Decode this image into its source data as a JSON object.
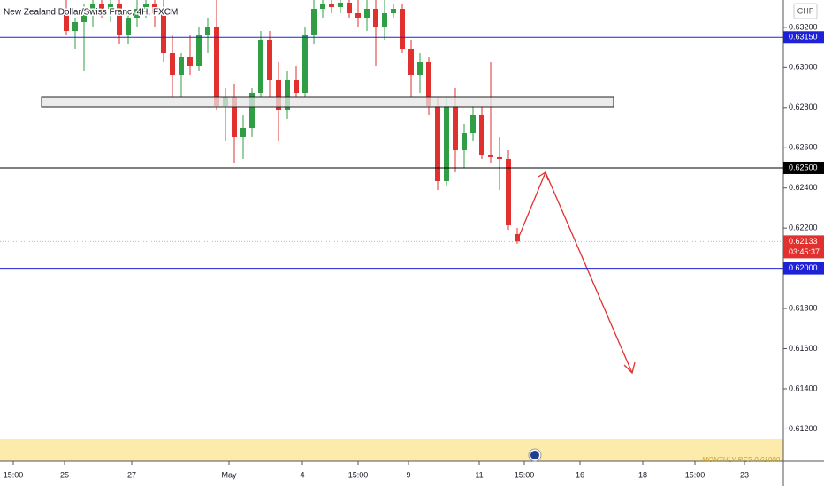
{
  "chart_data": {
    "type": "candlestick",
    "title": "New Zealand Dollar/Swiss Franc, 4H, FXCM",
    "currency": "CHF",
    "up_color": "#2f9e44",
    "down_color": "#e0312f",
    "open": [
      0.63292,
      0.63182,
      0.63226,
      0.6327,
      0.63314,
      0.63292,
      0.63314,
      0.6316,
      0.63248,
      0.63292,
      0.63314,
      0.6327,
      0.63072,
      0.62962,
      0.6305,
      0.63006,
      0.6316,
      0.63204,
      0.62808,
      0.62852,
      0.62654,
      0.62698,
      0.62874,
      0.63138,
      0.6294,
      0.62786,
      0.6294,
      0.62874,
      0.6316,
      0.63292,
      0.63314,
      0.63301,
      0.63323,
      0.6327,
      0.63248,
      0.63292,
      0.63204,
      0.6327,
      0.63292,
      0.63094,
      0.62962,
      0.63028,
      0.62808,
      0.62434,
      0.62808,
      0.62588,
      0.62676,
      0.62764,
      0.62566,
      0.62553,
      0.62544,
      0.6217
    ],
    "high": [
      0.63336,
      0.63248,
      0.63314,
      0.63336,
      0.63336,
      0.63336,
      0.63336,
      0.6327,
      0.63336,
      0.63336,
      0.63336,
      0.63336,
      0.6316,
      0.63072,
      0.6316,
      0.63204,
      0.63248,
      0.63336,
      0.62896,
      0.62918,
      0.62764,
      0.62896,
      0.63182,
      0.63182,
      0.63028,
      0.62984,
      0.63006,
      0.63204,
      0.63336,
      0.63336,
      0.63336,
      0.63336,
      0.63336,
      0.63336,
      0.63336,
      0.63336,
      0.63336,
      0.63314,
      0.63314,
      0.63138,
      0.63072,
      0.6305,
      0.62852,
      0.62852,
      0.62896,
      0.6272,
      0.62808,
      0.62808,
      0.63028,
      0.62654,
      0.62588,
      0.62201
    ],
    "low": [
      0.6316,
      0.63094,
      0.62984,
      0.63204,
      0.63248,
      0.63226,
      0.63116,
      0.63116,
      0.63204,
      0.63248,
      0.63204,
      0.63028,
      0.62852,
      0.62852,
      0.62962,
      0.62984,
      0.63072,
      0.62786,
      0.62632,
      0.62522,
      0.62544,
      0.62654,
      0.62852,
      0.62852,
      0.62632,
      0.62742,
      0.62852,
      0.62852,
      0.63116,
      0.63248,
      0.6327,
      0.6327,
      0.63248,
      0.63204,
      0.63182,
      0.63006,
      0.63138,
      0.63248,
      0.63072,
      0.62852,
      0.62874,
      0.62764,
      0.6239,
      0.62412,
      0.62478,
      0.625,
      0.62632,
      0.62544,
      0.62522,
      0.6239,
      0.62192,
      0.62122
    ],
    "close": [
      0.63182,
      0.63226,
      0.6327,
      0.63314,
      0.63292,
      0.63314,
      0.6316,
      0.63248,
      0.63292,
      0.63314,
      0.6327,
      0.63072,
      0.62962,
      0.6305,
      0.63006,
      0.6316,
      0.63204,
      0.62808,
      0.62852,
      0.62654,
      0.62698,
      0.62874,
      0.63138,
      0.6294,
      0.62786,
      0.6294,
      0.62874,
      0.6316,
      0.63292,
      0.63314,
      0.63301,
      0.63323,
      0.6327,
      0.63248,
      0.63292,
      0.63204,
      0.6327,
      0.63292,
      0.63094,
      0.62962,
      0.63028,
      0.62808,
      0.62434,
      0.62808,
      0.62588,
      0.62676,
      0.62764,
      0.62566,
      0.62553,
      0.62544,
      0.62214,
      0.62133
    ],
    "xlim": [
      -7.5,
      81.1
    ],
    "xticks": [
      {
        "value": -6,
        "label": "15:00"
      },
      {
        "value": -0.2,
        "label": "25"
      },
      {
        "value": 7.4,
        "label": "27"
      },
      {
        "value": 18.4,
        "label": "May"
      },
      {
        "value": 26.7,
        "label": "4"
      },
      {
        "value": 33,
        "label": "15:00"
      },
      {
        "value": 38.7,
        "label": "9"
      },
      {
        "value": 46.7,
        "label": "11"
      },
      {
        "value": 51.8,
        "label": "15:00"
      },
      {
        "value": 58.1,
        "label": "16"
      },
      {
        "value": 65.2,
        "label": "18"
      },
      {
        "value": 71.1,
        "label": "15:00"
      },
      {
        "value": 76.7,
        "label": "23"
      }
    ],
    "ylim": [
      0.61039,
      0.63336
    ],
    "yticks": [
      {
        "value": 0.632,
        "label": "0.63200"
      },
      {
        "value": 0.63,
        "label": "0.63000"
      },
      {
        "value": 0.628,
        "label": "0.62800"
      },
      {
        "value": 0.626,
        "label": "0.62600"
      },
      {
        "value": 0.624,
        "label": "0.62400"
      },
      {
        "value": 0.622,
        "label": "0.62200"
      },
      {
        "value": 0.618,
        "label": "0.61800"
      },
      {
        "value": 0.616,
        "label": "0.61600"
      },
      {
        "value": 0.614,
        "label": "0.61400"
      },
      {
        "value": 0.612,
        "label": "0.61200"
      }
    ],
    "levels": [
      {
        "value": 0.6315,
        "label": "0.63150",
        "color": "#1e22d6"
      },
      {
        "value": 0.625,
        "label": "0.62500",
        "color": "#000000"
      },
      {
        "value": 0.62,
        "label": "0.62000",
        "color": "#1e22d6"
      }
    ],
    "last_price": {
      "value": 0.62133,
      "label": "0.62133",
      "countdown": "03:45:37",
      "color": "#e0312f"
    },
    "annotation": "MONTHLY RES 0.61000"
  }
}
